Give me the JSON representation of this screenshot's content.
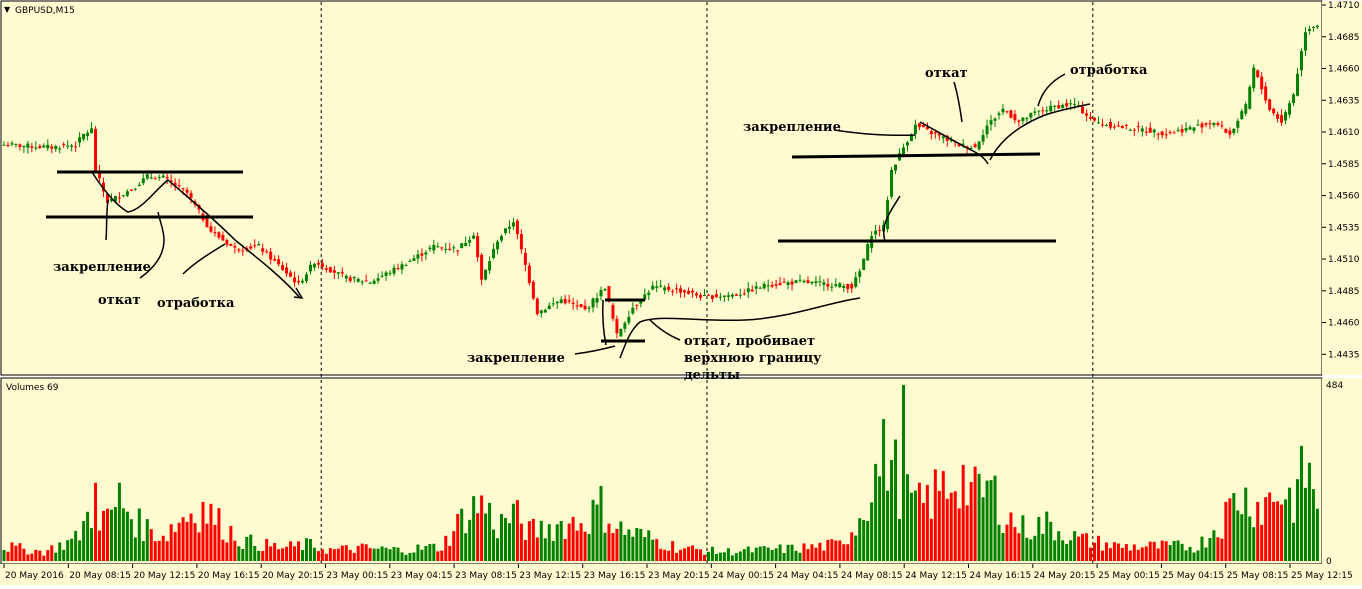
{
  "window": {
    "symbol_title": "GBPUSD,M15",
    "volume_title": "Volumes 69"
  },
  "colors": {
    "background": "#FFFBD0",
    "bull": "#008000",
    "bear": "#FF0000",
    "grid": "#000000",
    "text": "#000000"
  },
  "chart_data": [
    {
      "type": "candlestick",
      "title": "GBPUSD,M15",
      "ylim": [
        1.4425,
        1.471
      ],
      "y_ticks": [
        "1.4710",
        "1.4685",
        "1.4660",
        "1.4635",
        "1.4610",
        "1.4585",
        "1.4560",
        "1.4535",
        "1.4510",
        "1.4485",
        "1.4460",
        "1.4435"
      ],
      "x_ticks": [
        "20 May 2016",
        "20 May 08:15",
        "20 May 12:15",
        "20 May 16:15",
        "20 May 20:15",
        "23 May 00:15",
        "23 May 04:15",
        "23 May 08:15",
        "23 May 12:15",
        "23 May 16:15",
        "23 May 20:15",
        "24 May 00:15",
        "24 May 04:15",
        "24 May 08:15",
        "24 May 12:15",
        "24 May 16:15",
        "24 May 20:15",
        "25 May 00:15",
        "25 May 04:15",
        "25 May 08:15",
        "25 May 12:15"
      ],
      "day_separators_after_tick": [
        4,
        10,
        16
      ],
      "price_path_anchors": [
        {
          "i": 0,
          "p": 1.46
        },
        {
          "i": 12,
          "p": 1.4598
        },
        {
          "i": 18,
          "p": 1.46
        },
        {
          "i": 20,
          "p": 1.4608
        },
        {
          "i": 22,
          "p": 1.4612
        },
        {
          "i": 23,
          "p": 1.458
        },
        {
          "i": 26,
          "p": 1.4555
        },
        {
          "i": 32,
          "p": 1.4565
        },
        {
          "i": 36,
          "p": 1.4575
        },
        {
          "i": 40,
          "p": 1.4574
        },
        {
          "i": 46,
          "p": 1.4562
        },
        {
          "i": 52,
          "p": 1.4532
        },
        {
          "i": 58,
          "p": 1.4518
        },
        {
          "i": 64,
          "p": 1.452
        },
        {
          "i": 68,
          "p": 1.4508
        },
        {
          "i": 74,
          "p": 1.449
        },
        {
          "i": 78,
          "p": 1.4508
        },
        {
          "i": 86,
          "p": 1.4495
        },
        {
          "i": 92,
          "p": 1.4492
        },
        {
          "i": 100,
          "p": 1.4505
        },
        {
          "i": 108,
          "p": 1.452
        },
        {
          "i": 114,
          "p": 1.4518
        },
        {
          "i": 118,
          "p": 1.453
        },
        {
          "i": 120,
          "p": 1.4493
        },
        {
          "i": 124,
          "p": 1.4525
        },
        {
          "i": 128,
          "p": 1.454
        },
        {
          "i": 131,
          "p": 1.4505
        },
        {
          "i": 134,
          "p": 1.4468
        },
        {
          "i": 140,
          "p": 1.4478
        },
        {
          "i": 146,
          "p": 1.447
        },
        {
          "i": 151,
          "p": 1.4488
        },
        {
          "i": 154,
          "p": 1.445
        },
        {
          "i": 158,
          "p": 1.4472
        },
        {
          "i": 163,
          "p": 1.4488
        },
        {
          "i": 170,
          "p": 1.4485
        },
        {
          "i": 176,
          "p": 1.448
        },
        {
          "i": 184,
          "p": 1.4482
        },
        {
          "i": 192,
          "p": 1.449
        },
        {
          "i": 200,
          "p": 1.4492
        },
        {
          "i": 208,
          "p": 1.449
        },
        {
          "i": 213,
          "p": 1.4488
        },
        {
          "i": 215,
          "p": 1.45
        },
        {
          "i": 218,
          "p": 1.453
        },
        {
          "i": 221,
          "p": 1.4535
        },
        {
          "i": 223,
          "p": 1.458
        },
        {
          "i": 226,
          "p": 1.4598
        },
        {
          "i": 229,
          "p": 1.4615
        },
        {
          "i": 234,
          "p": 1.4608
        },
        {
          "i": 240,
          "p": 1.46
        },
        {
          "i": 244,
          "p": 1.4598
        },
        {
          "i": 247,
          "p": 1.4615
        },
        {
          "i": 251,
          "p": 1.4628
        },
        {
          "i": 255,
          "p": 1.4618
        },
        {
          "i": 259,
          "p": 1.4625
        },
        {
          "i": 264,
          "p": 1.463
        },
        {
          "i": 269,
          "p": 1.4632
        },
        {
          "i": 274,
          "p": 1.4618
        },
        {
          "i": 280,
          "p": 1.4614
        },
        {
          "i": 286,
          "p": 1.4612
        },
        {
          "i": 292,
          "p": 1.4609
        },
        {
          "i": 298,
          "p": 1.4613
        },
        {
          "i": 304,
          "p": 1.4618
        },
        {
          "i": 308,
          "p": 1.4608
        },
        {
          "i": 312,
          "p": 1.463
        },
        {
          "i": 314,
          "p": 1.466
        },
        {
          "i": 318,
          "p": 1.4628
        },
        {
          "i": 321,
          "p": 1.4618
        },
        {
          "i": 324,
          "p": 1.464
        },
        {
          "i": 327,
          "p": 1.469
        },
        {
          "i": 329,
          "p": 1.4694
        }
      ]
    },
    {
      "type": "bar",
      "title": "Volumes 69",
      "ylim": [
        0,
        484
      ],
      "y_ticks": [
        "484",
        "0"
      ],
      "volume_anchors": [
        {
          "i": 0,
          "v": 40
        },
        {
          "i": 10,
          "v": 25
        },
        {
          "i": 18,
          "v": 60
        },
        {
          "i": 22,
          "v": 140
        },
        {
          "i": 26,
          "v": 110
        },
        {
          "i": 29,
          "v": 170
        },
        {
          "i": 34,
          "v": 100
        },
        {
          "i": 40,
          "v": 70
        },
        {
          "i": 46,
          "v": 130
        },
        {
          "i": 50,
          "v": 145
        },
        {
          "i": 54,
          "v": 105
        },
        {
          "i": 60,
          "v": 55
        },
        {
          "i": 70,
          "v": 35
        },
        {
          "i": 76,
          "v": 45
        },
        {
          "i": 82,
          "v": 30
        },
        {
          "i": 90,
          "v": 35
        },
        {
          "i": 100,
          "v": 30
        },
        {
          "i": 110,
          "v": 40
        },
        {
          "i": 116,
          "v": 130
        },
        {
          "i": 120,
          "v": 160
        },
        {
          "i": 124,
          "v": 95
        },
        {
          "i": 128,
          "v": 130
        },
        {
          "i": 132,
          "v": 80
        },
        {
          "i": 140,
          "v": 100
        },
        {
          "i": 146,
          "v": 110
        },
        {
          "i": 150,
          "v": 150
        },
        {
          "i": 154,
          "v": 90
        },
        {
          "i": 160,
          "v": 70
        },
        {
          "i": 170,
          "v": 35
        },
        {
          "i": 180,
          "v": 25
        },
        {
          "i": 190,
          "v": 30
        },
        {
          "i": 200,
          "v": 35
        },
        {
          "i": 210,
          "v": 45
        },
        {
          "i": 214,
          "v": 100
        },
        {
          "i": 216,
          "v": 150
        },
        {
          "i": 218,
          "v": 210
        },
        {
          "i": 220,
          "v": 260
        },
        {
          "i": 222,
          "v": 300
        },
        {
          "i": 224,
          "v": 240
        },
        {
          "i": 226,
          "v": 180
        },
        {
          "i": 230,
          "v": 150
        },
        {
          "i": 236,
          "v": 200
        },
        {
          "i": 240,
          "v": 240
        },
        {
          "i": 244,
          "v": 180
        },
        {
          "i": 248,
          "v": 200
        },
        {
          "i": 252,
          "v": 120
        },
        {
          "i": 256,
          "v": 90
        },
        {
          "i": 262,
          "v": 100
        },
        {
          "i": 270,
          "v": 60
        },
        {
          "i": 280,
          "v": 40
        },
        {
          "i": 290,
          "v": 40
        },
        {
          "i": 300,
          "v": 40
        },
        {
          "i": 306,
          "v": 110
        },
        {
          "i": 310,
          "v": 180
        },
        {
          "i": 316,
          "v": 150
        },
        {
          "i": 320,
          "v": 190
        },
        {
          "i": 324,
          "v": 170
        },
        {
          "i": 328,
          "v": 270
        },
        {
          "i": 330,
          "v": 120
        }
      ],
      "spikes": [
        {
          "i": 23,
          "v": 215
        },
        {
          "i": 226,
          "v": 484
        },
        {
          "i": 328,
          "v": 270
        }
      ]
    }
  ],
  "annotations": {
    "label_1": "закрепление",
    "label_2": "откат",
    "label_3": "отработка",
    "label_4": "закрепление",
    "label_5_line1": "откат, пробивает",
    "label_5_line2": "верхнюю границу",
    "label_5_line3": "дельты",
    "label_6": "закрепление",
    "label_7": "откат",
    "label_8": "отработка"
  }
}
